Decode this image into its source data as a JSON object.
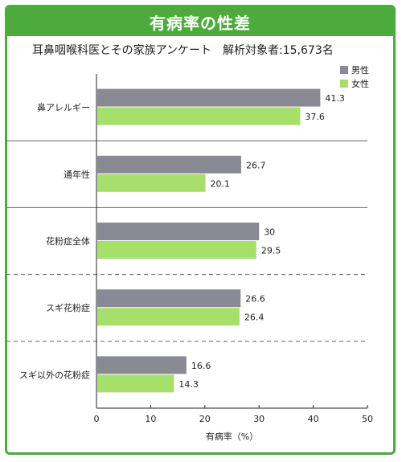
{
  "header": {
    "title": "有病率の性差",
    "subtitle": "耳鼻咽喉科医とその家族アンケート　解析対象者:15,673名"
  },
  "colors": {
    "frame": "#4daa3c",
    "male": "#8a8a94",
    "female": "#a6e06a",
    "axis": "#222222",
    "separator": "#5a6570"
  },
  "chart_data": {
    "type": "bar",
    "orientation": "horizontal",
    "categories": [
      "鼻アレルギー",
      "通年性",
      "花粉症全体",
      "スギ花粉症",
      "スギ以外の花粉症"
    ],
    "series": [
      {
        "name": "男性",
        "values": [
          41.3,
          26.7,
          30,
          26.6,
          16.6
        ]
      },
      {
        "name": "女性",
        "values": [
          37.6,
          20.1,
          29.5,
          26.4,
          14.3
        ]
      }
    ],
    "value_labels": [
      [
        "41.3",
        "37.6"
      ],
      [
        "26.7",
        "20.1"
      ],
      [
        "30",
        "29.5"
      ],
      [
        "26.6",
        "26.4"
      ],
      [
        "16.6",
        "14.3"
      ]
    ],
    "xlabel": "有病率（%）",
    "ylabel": "",
    "xlim": [
      0,
      50
    ],
    "xticks": [
      0,
      10,
      20,
      30,
      40,
      50
    ],
    "xtick_labels": [
      "0",
      "10",
      "20",
      "30",
      "40",
      "50"
    ],
    "legend_position": "top-right",
    "separators": [
      "solid",
      "solid",
      "dashed",
      "dashed"
    ]
  }
}
